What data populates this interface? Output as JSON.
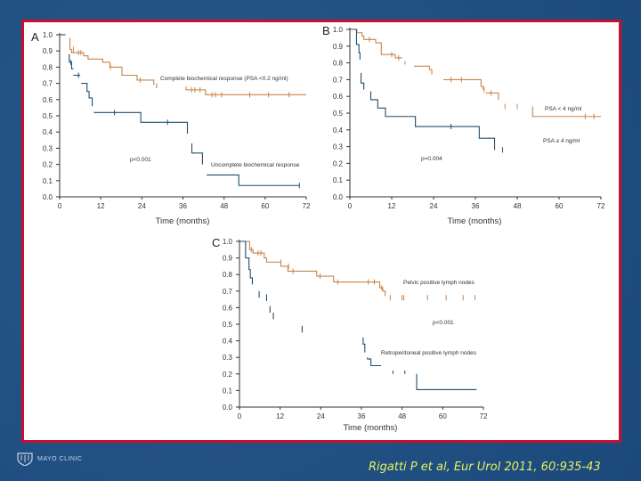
{
  "colors": {
    "background": "#1d4f86",
    "panel_border": "#c8102e",
    "series_orange": "#c8844a",
    "series_blue": "#1f4e6e",
    "citation": "#e6f060"
  },
  "footer": {
    "logo_text": "MAYO CLINIC",
    "citation": "Rigatti P et al, Eur Urol 2011, 60:935-43"
  },
  "chart_data": [
    {
      "type": "line",
      "panel": "A",
      "xlabel": "Time (months)",
      "ylabel": "",
      "xlim": [
        0,
        72
      ],
      "ylim": [
        0,
        1
      ],
      "xticks": [
        "0",
        "12",
        "24",
        "36",
        "48",
        "60",
        "72"
      ],
      "yticks": [
        "0.0",
        "0.1",
        "0.2",
        "0.3",
        "0.4",
        "0.5",
        "0.6",
        "0.7",
        "0.8",
        "0.9",
        "1.0"
      ],
      "annotations": {
        "p_value": "p<0.001"
      },
      "series": [
        {
          "name": "Complete biochemical response (PSA <0.2 ng/ml)",
          "color": "#c8844a",
          "segments": [
            [
              [
                3,
                0.98
              ],
              [
                3,
                0.91
              ],
              [
                3.5,
                0.91
              ],
              [
                3.5,
                0.89
              ],
              [
                7,
                0.89
              ],
              [
                7,
                0.87
              ],
              [
                8.3,
                0.87
              ],
              [
                8.3,
                0.85
              ],
              [
                12.6,
                0.85
              ],
              [
                12.6,
                0.83
              ],
              [
                14.7,
                0.83
              ],
              [
                14.7,
                0.8
              ],
              [
                18.2,
                0.8
              ],
              [
                18.2,
                0.75
              ],
              [
                22.6,
                0.75
              ],
              [
                22.6,
                0.72
              ],
              [
                27.5,
                0.72
              ],
              [
                27.5,
                0.69
              ]
            ],
            [
              [
                28.3,
                0.7
              ],
              [
                28.3,
                0.67
              ]
            ],
            [
              [
                36.9,
                0.68
              ],
              [
                36.9,
                0.66
              ],
              [
                42.6,
                0.66
              ],
              [
                42.6,
                0.63
              ],
              [
                72,
                0.63
              ]
            ]
          ],
          "censored": [
            [
              4,
              0.91
            ],
            [
              5.5,
              0.89
            ],
            [
              6.2,
              0.89
            ],
            [
              14.8,
              0.8
            ],
            [
              23.5,
              0.72
            ],
            [
              38.5,
              0.66
            ],
            [
              39.5,
              0.66
            ],
            [
              41,
              0.66
            ],
            [
              44.5,
              0.63
            ],
            [
              45.5,
              0.63
            ],
            [
              47.3,
              0.63
            ],
            [
              55.5,
              0.63
            ],
            [
              61,
              0.63
            ],
            [
              67,
              0.63
            ]
          ]
        },
        {
          "name": "Uncomplete biochemical response",
          "color": "#1f4e6e",
          "segments": [
            [
              [
                0,
                1
              ],
              [
                1.7,
                1
              ]
            ],
            [
              [
                2.8,
                0.88
              ],
              [
                2.8,
                0.83
              ],
              [
                3.5,
                0.83
              ],
              [
                3.5,
                0.79
              ],
              [
                4,
                0.79
              ]
            ],
            [
              [
                4,
                0.75
              ],
              [
                6,
                0.75
              ]
            ],
            [
              [
                6.3,
                0.7
              ],
              [
                8,
                0.7
              ],
              [
                8,
                0.65
              ],
              [
                8.6,
                0.65
              ],
              [
                8.6,
                0.61
              ],
              [
                9.5,
                0.61
              ],
              [
                9.5,
                0.56
              ]
            ],
            [
              [
                10,
                0.52
              ],
              [
                23.7,
                0.52
              ],
              [
                23.7,
                0.46
              ],
              [
                37.3,
                0.46
              ],
              [
                37.3,
                0.39
              ]
            ],
            [
              [
                38.6,
                0.33
              ],
              [
                38.6,
                0.27
              ],
              [
                41.7,
                0.27
              ],
              [
                41.7,
                0.2
              ]
            ],
            [
              [
                42.9,
                0.135
              ],
              [
                52.3,
                0.135
              ],
              [
                52.3,
                0.07
              ],
              [
                70,
                0.07
              ]
            ]
          ],
          "censored": [
            [
              3.3,
              0.83
            ],
            [
              5.5,
              0.75
            ],
            [
              16,
              0.52
            ],
            [
              31.5,
              0.46
            ],
            [
              70,
              0.07
            ]
          ]
        }
      ]
    },
    {
      "type": "line",
      "panel": "B",
      "xlabel": "Time (months)",
      "ylabel": "",
      "xlim": [
        0,
        72
      ],
      "ylim": [
        0,
        1
      ],
      "xticks": [
        "0",
        "12",
        "24",
        "36",
        "48",
        "60",
        "72"
      ],
      "yticks": [
        "0.0",
        "0.1",
        "0.2",
        "0.3",
        "0.4",
        "0.5",
        "0.6",
        "0.7",
        "0.8",
        "0.9",
        "1.0"
      ],
      "annotations": {
        "p_value": "p=0.004"
      },
      "series": [
        {
          "name": "PSA < 4 ng/ml",
          "color": "#c8844a",
          "segments": [
            [
              [
                0,
                1
              ],
              [
                2,
                1
              ],
              [
                2,
                0.98
              ],
              [
                3.5,
                0.98
              ],
              [
                3.5,
                0.96
              ],
              [
                4,
                0.96
              ],
              [
                4,
                0.94
              ],
              [
                7.4,
                0.94
              ],
              [
                7.4,
                0.92
              ],
              [
                9,
                0.92
              ],
              [
                9,
                0.85
              ],
              [
                13,
                0.85
              ],
              [
                13,
                0.83
              ],
              [
                15,
                0.83
              ]
            ],
            [
              [
                15.8,
                0.81
              ],
              [
                15.8,
                0.79
              ]
            ],
            [
              [
                18.4,
                0.78
              ],
              [
                22.8,
                0.78
              ],
              [
                22.8,
                0.76
              ],
              [
                23.5,
                0.76
              ],
              [
                23.5,
                0.73
              ]
            ],
            [
              [
                26.8,
                0.7
              ],
              [
                37.6,
                0.7
              ],
              [
                37.6,
                0.66
              ],
              [
                38.2,
                0.66
              ],
              [
                38.2,
                0.64
              ]
            ],
            [
              [
                39,
                0.62
              ],
              [
                42.6,
                0.62
              ],
              [
                42.6,
                0.58
              ]
            ],
            [
              [
                52.4,
                0.54
              ],
              [
                52.4,
                0.48
              ],
              [
                72,
                0.48
              ]
            ]
          ],
          "censored": [
            [
              5.6,
              0.94
            ],
            [
              12,
              0.85
            ],
            [
              14,
              0.83
            ],
            [
              29,
              0.7
            ],
            [
              32,
              0.7
            ],
            [
              38.5,
              0.64
            ],
            [
              40.5,
              0.62
            ],
            [
              44.5,
              0.54
            ],
            [
              48,
              0.54
            ],
            [
              67.5,
              0.48
            ],
            [
              70,
              0.48
            ]
          ]
        },
        {
          "name": "PSA ≥ 4 ng/ml",
          "color": "#1f4e6e",
          "segments": [
            [
              [
                0,
                1
              ],
              [
                1.9,
                1
              ],
              [
                1.9,
                0.91
              ],
              [
                2.6,
                0.91
              ],
              [
                2.6,
                0.86
              ],
              [
                2.9,
                0.86
              ],
              [
                2.9,
                0.82
              ]
            ],
            [
              [
                3.2,
                0.74
              ],
              [
                3.2,
                0.68
              ],
              [
                4,
                0.68
              ],
              [
                4,
                0.64
              ]
            ],
            [
              [
                6,
                0.63
              ],
              [
                6,
                0.58
              ],
              [
                8,
                0.58
              ],
              [
                8,
                0.53
              ],
              [
                10.2,
                0.53
              ],
              [
                10.2,
                0.48
              ],
              [
                18.8,
                0.48
              ],
              [
                18.8,
                0.42
              ],
              [
                37.1,
                0.42
              ],
              [
                37.1,
                0.35
              ],
              [
                41.5,
                0.35
              ],
              [
                41.5,
                0.28
              ]
            ]
          ],
          "censored": [
            [
              29,
              0.42
            ],
            [
              43.8,
              0.28
            ]
          ]
        }
      ]
    },
    {
      "type": "line",
      "panel": "C",
      "xlabel": "Time (months)",
      "ylabel": "",
      "xlim": [
        0,
        72
      ],
      "ylim": [
        0,
        1
      ],
      "xticks": [
        "0",
        "12",
        "24",
        "36",
        "48",
        "60",
        "72"
      ],
      "yticks": [
        "0.0",
        "0.1",
        "0.2",
        "0.3",
        "0.4",
        "0.5",
        "0.6",
        "0.7",
        "0.8",
        "0.9",
        "1.0"
      ],
      "annotations": {
        "p_value": "p<0.001"
      },
      "series": [
        {
          "name": "Pelvic positive lymph nodes",
          "color": "#c8844a",
          "segments": [
            [
              [
                1,
                1
              ],
              [
                3,
                1
              ],
              [
                3,
                0.95
              ],
              [
                4,
                0.95
              ],
              [
                4,
                0.93
              ],
              [
                7.3,
                0.93
              ],
              [
                7.3,
                0.9
              ],
              [
                8,
                0.9
              ],
              [
                8,
                0.875
              ],
              [
                12.2,
                0.875
              ],
              [
                12.2,
                0.85
              ],
              [
                14.3,
                0.85
              ],
              [
                14.3,
                0.82
              ],
              [
                22.8,
                0.82
              ],
              [
                22.8,
                0.79
              ],
              [
                27.8,
                0.79
              ],
              [
                27.8,
                0.755
              ],
              [
                41.4,
                0.755
              ],
              [
                41.4,
                0.72
              ],
              [
                42.3,
                0.72
              ],
              [
                42.3,
                0.7
              ],
              [
                43,
                0.7
              ],
              [
                43,
                0.67
              ]
            ]
          ],
          "censored": [
            [
              3.5,
              0.95
            ],
            [
              5.5,
              0.93
            ],
            [
              6.3,
              0.93
            ],
            [
              12.2,
              0.875
            ],
            [
              14.5,
              0.85
            ],
            [
              15.8,
              0.82
            ],
            [
              23.8,
              0.79
            ],
            [
              29,
              0.755
            ],
            [
              38,
              0.755
            ],
            [
              39.8,
              0.755
            ],
            [
              42,
              0.72
            ],
            [
              44.5,
              0.66
            ],
            [
              48,
              0.66
            ],
            [
              48.5,
              0.66
            ],
            [
              55.5,
              0.66
            ],
            [
              61,
              0.66
            ],
            [
              66,
              0.66
            ],
            [
              69.5,
              0.66
            ]
          ]
        },
        {
          "name": "Retroperitoneal positive lymph nodes",
          "color": "#1f4e6e",
          "segments": [
            [
              [
                0,
                1
              ],
              [
                1.8,
                1
              ],
              [
                1.8,
                0.9
              ],
              [
                2.8,
                0.9
              ],
              [
                2.8,
                0.83
              ],
              [
                3.2,
                0.83
              ],
              [
                3.2,
                0.78
              ],
              [
                3.8,
                0.78
              ],
              [
                3.8,
                0.74
              ]
            ],
            [
              [
                5.8,
                0.7
              ],
              [
                5.8,
                0.66
              ]
            ],
            [
              [
                8,
                0.68
              ],
              [
                8,
                0.64
              ]
            ],
            [
              [
                9,
                0.61
              ],
              [
                9,
                0.57
              ]
            ],
            [
              [
                10,
                0.57
              ],
              [
                10,
                0.53
              ]
            ],
            [
              [
                18.5,
                0.49
              ],
              [
                18.5,
                0.45
              ]
            ],
            [
              [
                36.5,
                0.42
              ],
              [
                36.5,
                0.38
              ],
              [
                37,
                0.38
              ],
              [
                37,
                0.33
              ]
            ],
            [
              [
                37.8,
                0.3
              ],
              [
                37.8,
                0.29
              ],
              [
                38.8,
                0.29
              ],
              [
                38.8,
                0.25
              ],
              [
                41.8,
                0.25
              ]
            ],
            [
              [
                45.3,
                0.22
              ],
              [
                45.3,
                0.2
              ]
            ],
            [
              [
                48.8,
                0.22
              ],
              [
                48.8,
                0.2
              ]
            ],
            [
              [
                52.3,
                0.2
              ],
              [
                52.3,
                0.105
              ],
              [
                70,
                0.105
              ]
            ]
          ],
          "censored": []
        }
      ]
    }
  ]
}
